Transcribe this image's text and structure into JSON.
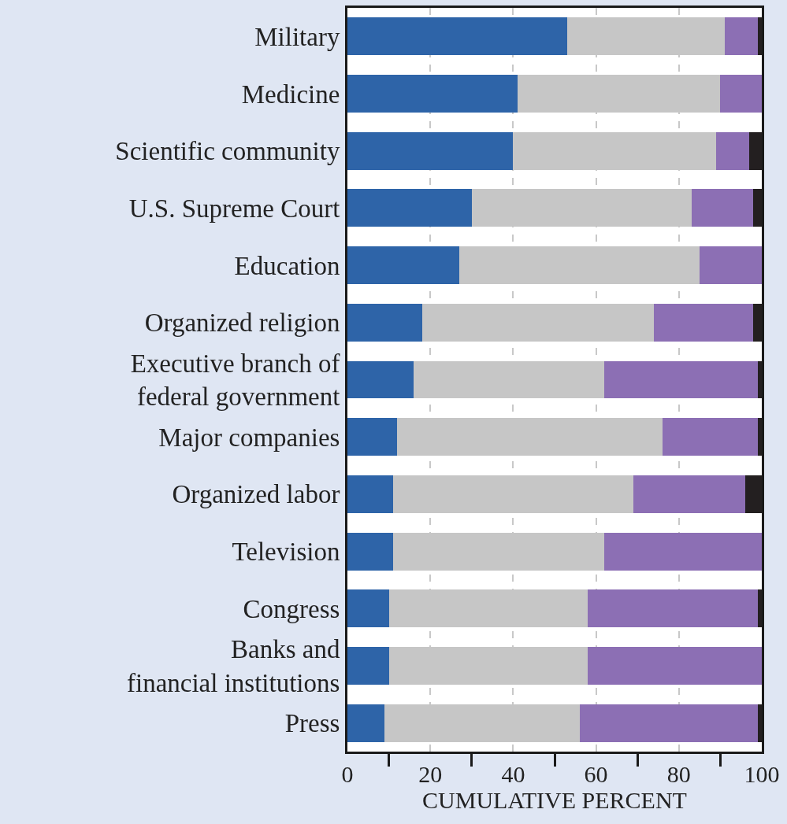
{
  "chart_data": {
    "type": "bar",
    "orientation": "horizontal",
    "stacked": true,
    "xlabel": "CUMULATIVE PERCENT",
    "categories": [
      "Military",
      "Medicine",
      "Scientific community",
      "U.S. Supreme Court",
      "Education",
      "Organized religion",
      "Executive branch of\nfederal government",
      "Major companies",
      "Organized labor",
      "Television",
      "Congress",
      "Banks and\nfinancial institutions",
      "Press"
    ],
    "series": [
      {
        "color": "#2e64a8",
        "values": [
          53,
          41,
          40,
          30,
          27,
          18,
          16,
          12,
          11,
          11,
          10,
          10,
          9
        ]
      },
      {
        "color": "#c6c6c6",
        "values": [
          38,
          49,
          49,
          53,
          58,
          56,
          46,
          64,
          58,
          51,
          48,
          48,
          47
        ]
      },
      {
        "color": "#8c6fb4",
        "values": [
          8,
          10,
          8,
          15,
          15,
          24,
          37,
          23,
          27,
          38,
          41,
          42,
          43
        ]
      },
      {
        "color": "#231f20",
        "values": [
          1,
          0,
          3,
          2,
          0,
          2,
          1,
          1,
          4,
          0,
          1,
          0,
          1
        ]
      }
    ],
    "xlim": [
      0,
      100
    ],
    "xticks": [
      0,
      {
        "value": 10,
        "label": null
      },
      20,
      {
        "value": 30,
        "label": null
      },
      40,
      {
        "value": 50,
        "label": null
      },
      60,
      {
        "value": 70,
        "label": null
      },
      80,
      {
        "value": 90,
        "label": null
      },
      100
    ],
    "grid": "x"
  }
}
